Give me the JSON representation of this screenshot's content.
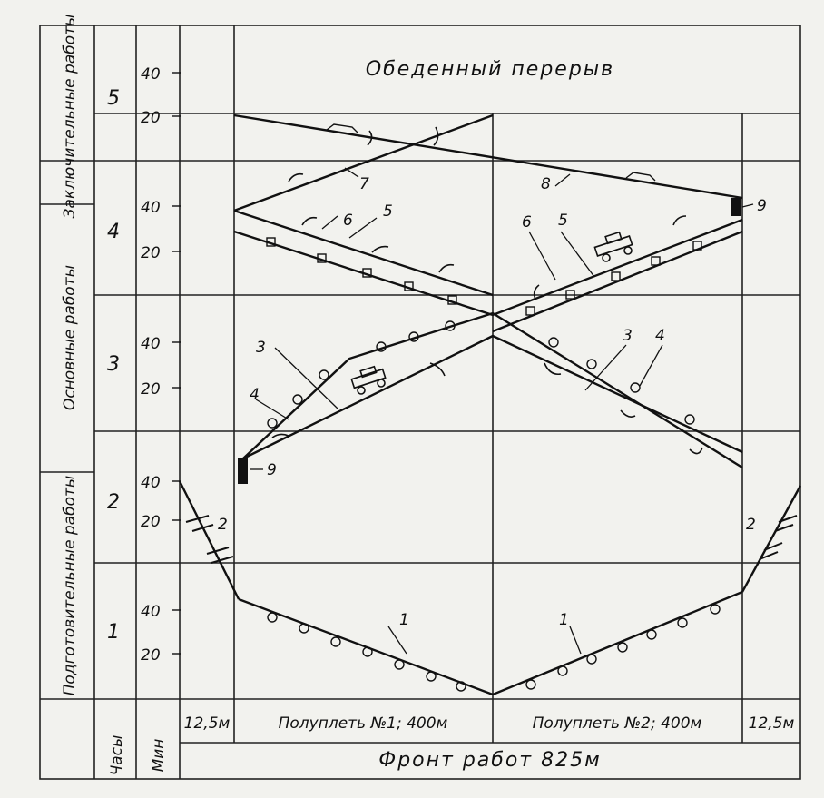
{
  "header": {
    "lunch_break": "Обеденный перерыв"
  },
  "groups": {
    "final": "Заключительные работы",
    "main": "Основные работы",
    "prep": "Подготовительные работы"
  },
  "hours": [
    "5",
    "4",
    "3",
    "2",
    "1"
  ],
  "minute_ticks": {
    "row5": [
      "40",
      "20"
    ],
    "row4": [
      "40",
      "20"
    ],
    "row3": [
      "40",
      "20"
    ],
    "row2": [
      "40",
      "20"
    ],
    "row1": [
      "40",
      "20"
    ]
  },
  "footer": {
    "hours_col": "Часы",
    "min_col": "Мин",
    "left_margin": "12,5м",
    "half1": "Полуплеть №1; 400м",
    "half2": "Полуплеть №2; 400м",
    "right_margin": "12,5м",
    "front": "Фронт работ 825м"
  },
  "line_labels": {
    "l1a": "1",
    "l1b": "1",
    "l2a": "2",
    "l2b": "2",
    "l3a": "3",
    "l3b": "3",
    "l4a": "4",
    "l4b": "4",
    "l5a": "5",
    "l5b": "5",
    "l6a": "6",
    "l6b": "6",
    "l7": "7",
    "l8": "8",
    "l9a": "9",
    "l9b": "9"
  }
}
